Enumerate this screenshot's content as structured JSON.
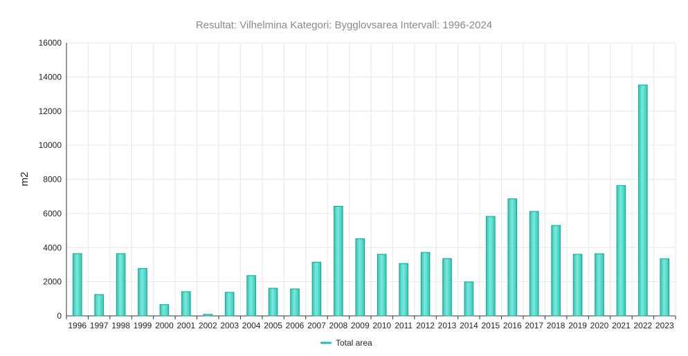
{
  "colors": {
    "bar_fill": "#2ec9b8",
    "bar_stroke": "#169e8f",
    "bar_highlight": "#7ee8dc",
    "legend_swatch": "#1fbfae"
  },
  "chart_data": {
    "type": "bar",
    "title": "Resultat: Vilhelmina Kategori: Bygglovsarea Intervall: 1996-2024",
    "xlabel": "",
    "ylabel": "m2",
    "ylim": [
      0,
      16000
    ],
    "yticks": [
      "0",
      "2000",
      "4000",
      "6000",
      "8000",
      "10000",
      "12000",
      "14000",
      "16000"
    ],
    "grid": true,
    "legend_position": "bottom-center",
    "categories": [
      "1996",
      "1997",
      "1998",
      "1999",
      "2000",
      "2001",
      "2002",
      "2003",
      "2004",
      "2005",
      "2006",
      "2007",
      "2008",
      "2009",
      "2010",
      "2011",
      "2012",
      "2013",
      "2014",
      "2015",
      "2016",
      "2017",
      "2018",
      "2019",
      "2020",
      "2021",
      "2022",
      "2023"
    ],
    "series": [
      {
        "name": "Total area",
        "values": [
          3650,
          1250,
          3650,
          2780,
          660,
          1420,
          90,
          1380,
          2360,
          1620,
          1580,
          3150,
          6420,
          4520,
          3610,
          3070,
          3720,
          3360,
          1990,
          5830,
          6860,
          6120,
          5300,
          3610,
          3640,
          7640,
          13530,
          3350
        ]
      }
    ]
  }
}
